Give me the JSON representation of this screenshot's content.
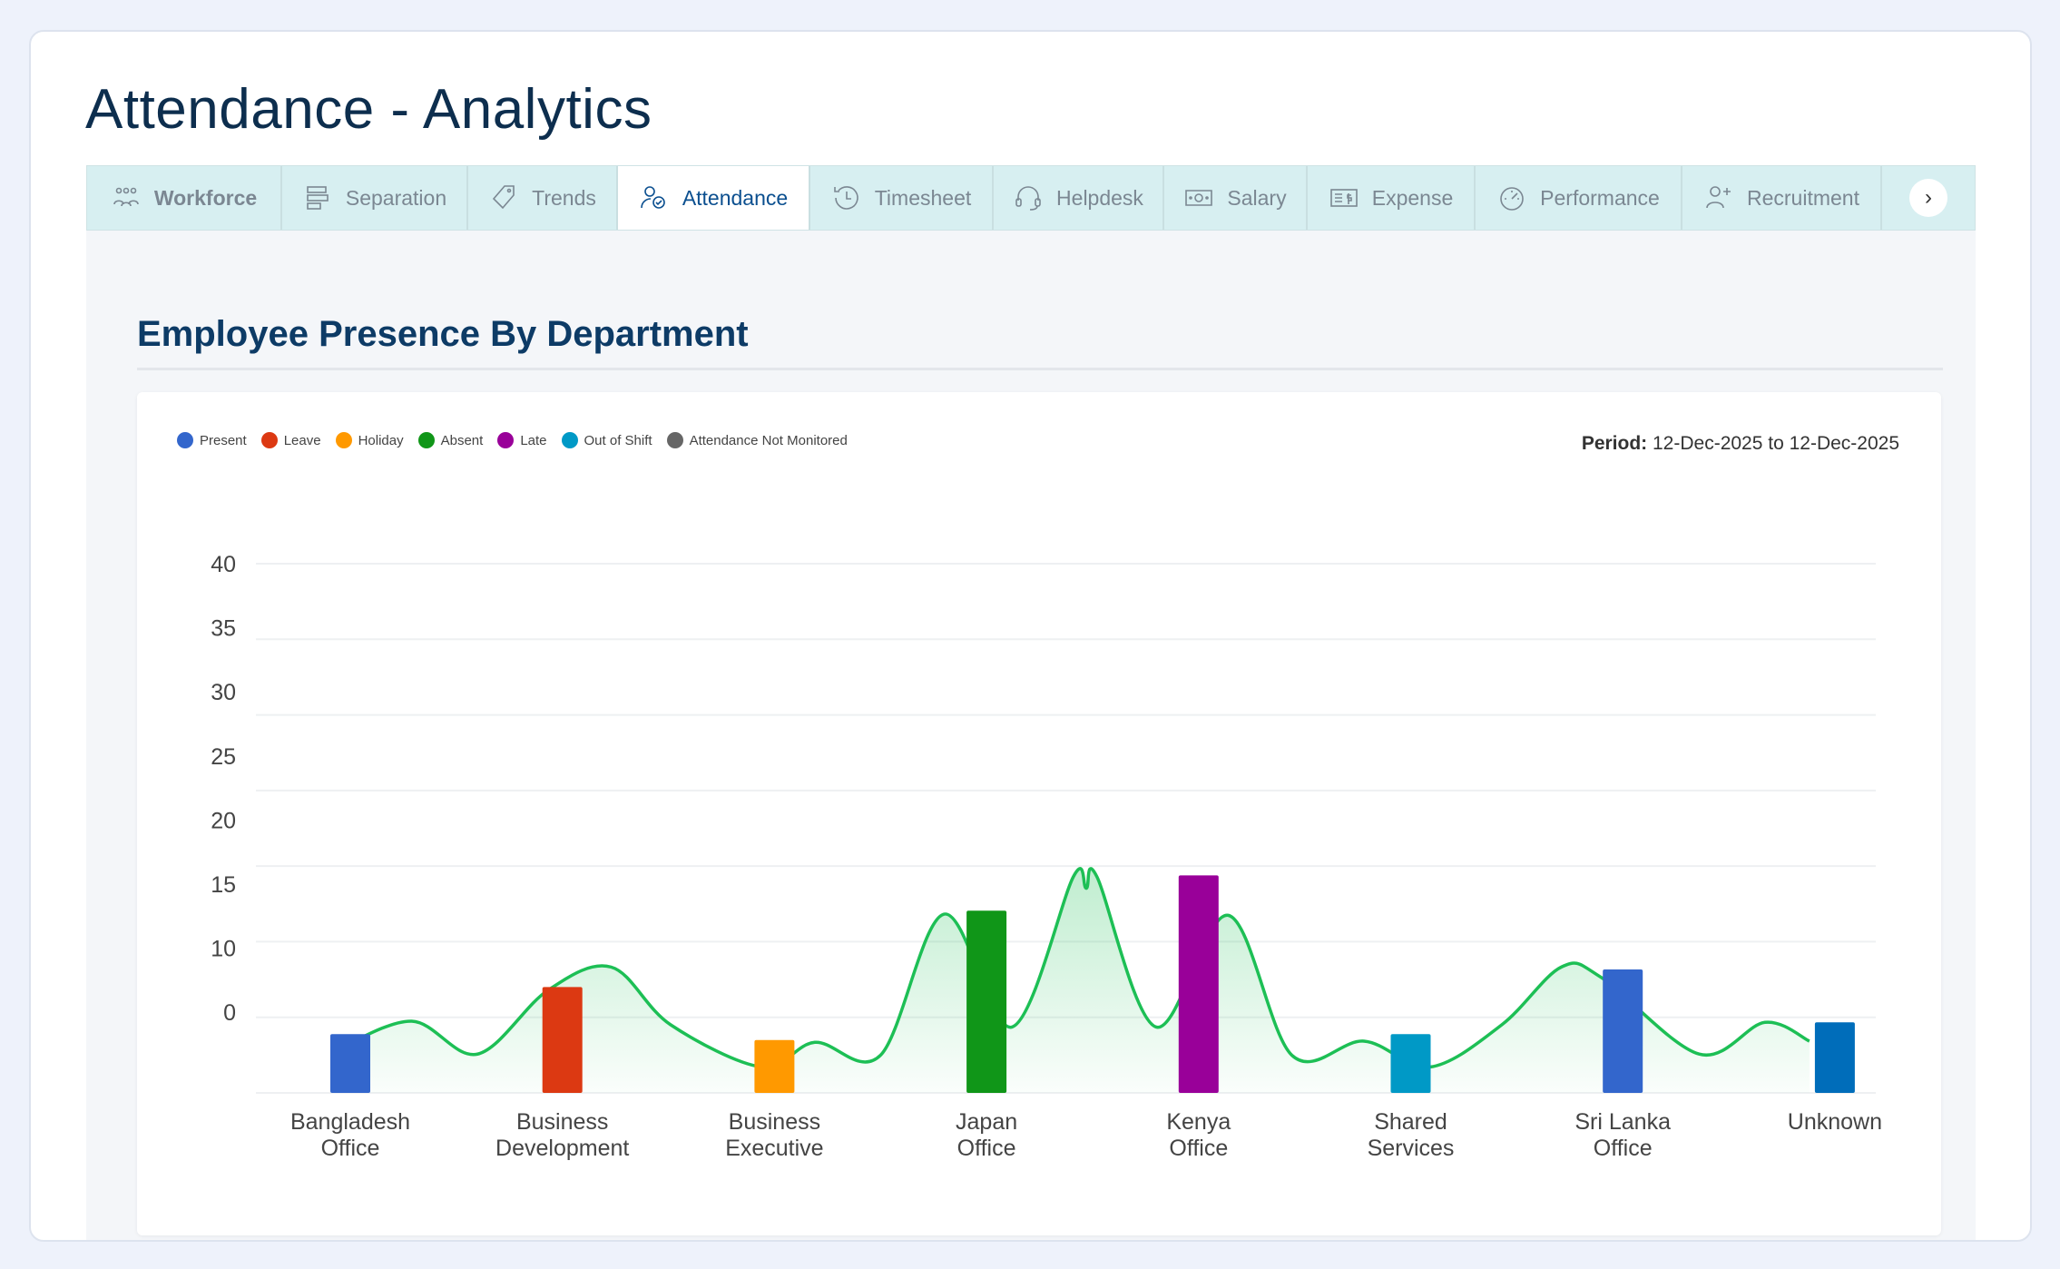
{
  "page_title": "Attendance - Analytics",
  "tabs": [
    {
      "label": "Workforce",
      "icon": "users-icon"
    },
    {
      "label": "Separation",
      "icon": "separation-icon"
    },
    {
      "label": "Trends",
      "icon": "tag-icon"
    },
    {
      "label": "Attendance",
      "icon": "user-check-icon",
      "active": true
    },
    {
      "label": "Timesheet",
      "icon": "history-icon"
    },
    {
      "label": "Helpdesk",
      "icon": "headset-icon"
    },
    {
      "label": "Salary",
      "icon": "money-icon"
    },
    {
      "label": "Expense",
      "icon": "receipt-icon"
    },
    {
      "label": "Performance",
      "icon": "gauge-icon"
    },
    {
      "label": "Recruitment",
      "icon": "user-plus-icon"
    }
  ],
  "tabs_next": "›",
  "section": {
    "heading": "Employee Presence By Department",
    "period_label": "Period:",
    "period_value": "12-Dec-2025 to 12-Dec-2025"
  },
  "chart_data": {
    "type": "bar",
    "legend_position": "top-left",
    "legend": [
      {
        "name": "Present",
        "color": "#3366cc"
      },
      {
        "name": "Leave",
        "color": "#dc3912"
      },
      {
        "name": "Holiday",
        "color": "#ff9900"
      },
      {
        "name": "Absent",
        "color": "#109618"
      },
      {
        "name": "Late",
        "color": "#990099"
      },
      {
        "name": "Out of Shift",
        "color": "#0099c6"
      },
      {
        "name": "Attendance Not Monitored",
        "color": "#666666"
      }
    ],
    "categories": [
      [
        "Bangladesh",
        "Office"
      ],
      [
        "Business",
        "Development"
      ],
      [
        "Business",
        "Executive"
      ],
      [
        "Japan",
        "Office"
      ],
      [
        "Kenya",
        "Office"
      ],
      [
        "Shared",
        "Services"
      ],
      [
        "Sri Lanka",
        "Office"
      ],
      [
        "Unknown"
      ]
    ],
    "bar_colors": [
      "#3366cc",
      "#dc3912",
      "#ff9900",
      "#109618",
      "#990099",
      "#0099c6",
      "#3366cc",
      "#006dba"
    ],
    "values": [
      0,
      4,
      -0.5,
      10.5,
      13.5,
      0,
      5.5,
      1
    ],
    "y_tick_labels": [
      "40",
      "35",
      "30",
      "25",
      "20",
      "15",
      "10",
      "0"
    ],
    "ylim": [
      -5,
      40
    ],
    "grid": true,
    "trend_line": {
      "color": "#1dbf55",
      "points": [
        [
          -0.06,
          -1.3
        ],
        [
          0.29,
          1.1
        ],
        [
          0.6,
          -1.7
        ],
        [
          0.93,
          3.7
        ],
        [
          1.23,
          5.7
        ],
        [
          1.51,
          0.8
        ],
        [
          1.94,
          -2.8
        ],
        [
          2.19,
          -0.7
        ],
        [
          2.5,
          -1.8
        ],
        [
          2.8,
          10.2
        ],
        [
          3.12,
          0.6
        ],
        [
          3.41,
          13.4
        ],
        [
          3.47,
          12.4
        ],
        [
          3.52,
          13.4
        ],
        [
          3.8,
          0.6
        ],
        [
          4.14,
          10.1
        ],
        [
          4.44,
          -1.8
        ],
        [
          4.78,
          -0.6
        ],
        [
          5.09,
          -2.8
        ],
        [
          5.43,
          0.8
        ],
        [
          5.71,
          5.7
        ],
        [
          5.9,
          4.8
        ],
        [
          6.36,
          -1.7
        ],
        [
          6.67,
          1.0
        ],
        [
          6.88,
          -0.6
        ]
      ]
    }
  }
}
